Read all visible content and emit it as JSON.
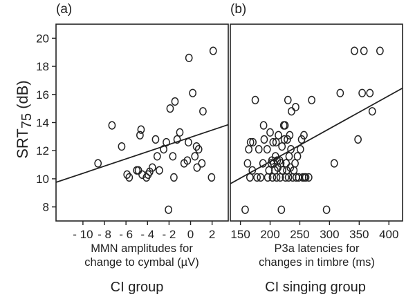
{
  "chart_data": [
    {
      "type": "scatter",
      "panel_label": "(a)",
      "group_label": "CI group",
      "xlabel_lines": [
        "MMN amplitudes for",
        "change to cymbal (µV)"
      ],
      "ylabel": {
        "main": "SRT",
        "sub": "75",
        "unit": " (dB)"
      },
      "xlim": [
        -12.5,
        3.5
      ],
      "ylim": [
        7,
        21
      ],
      "xticks": [
        -10,
        -8,
        -6,
        -4,
        -2,
        0,
        2
      ],
      "xtick_labels": [
        "- 10",
        "- 8",
        "- 6",
        "- 4",
        "- 2",
        "0",
        "2"
      ],
      "yticks": [
        8,
        10,
        12,
        14,
        16,
        18,
        20
      ],
      "points": [
        [
          -8.6,
          11.1
        ],
        [
          -7.3,
          13.8
        ],
        [
          -6.4,
          12.3
        ],
        [
          -5.9,
          10.3
        ],
        [
          -5.7,
          10.1
        ],
        [
          -5.0,
          10.6
        ],
        [
          -4.85,
          10.6
        ],
        [
          -4.7,
          13.1
        ],
        [
          -4.6,
          13.5
        ],
        [
          -4.5,
          10.3
        ],
        [
          -4.1,
          10.1
        ],
        [
          -3.95,
          10.3
        ],
        [
          -3.8,
          10.5
        ],
        [
          -3.55,
          10.8
        ],
        [
          -3.25,
          12.8
        ],
        [
          -3.1,
          11.6
        ],
        [
          -2.9,
          10.6
        ],
        [
          -2.5,
          12.1
        ],
        [
          -2.25,
          12.6
        ],
        [
          -2.05,
          7.8
        ],
        [
          -1.9,
          15.0
        ],
        [
          -1.65,
          11.6
        ],
        [
          -1.55,
          10.1
        ],
        [
          -1.45,
          15.5
        ],
        [
          -1.25,
          12.8
        ],
        [
          -1.0,
          13.3
        ],
        [
          -0.6,
          11.1
        ],
        [
          -0.3,
          11.3
        ],
        [
          -0.15,
          18.6
        ],
        [
          -0.2,
          12.6
        ],
        [
          0.2,
          16.1
        ],
        [
          0.4,
          11.6
        ],
        [
          0.55,
          12.3
        ],
        [
          0.6,
          10.8
        ],
        [
          0.75,
          12.1
        ],
        [
          1.05,
          11.1
        ],
        [
          1.15,
          14.8
        ],
        [
          1.95,
          10.1
        ],
        [
          2.1,
          19.1
        ]
      ],
      "fit_line": {
        "x": [
          -12.5,
          3.5
        ],
        "y": [
          9.75,
          13.85
        ]
      }
    },
    {
      "type": "scatter",
      "panel_label": "(b)",
      "group_label": "CI singing group",
      "xlabel_lines": [
        "P3a latencies for",
        "changes in timbre (ms)"
      ],
      "xlim": [
        133,
        423
      ],
      "ylim": [
        7,
        21
      ],
      "xticks": [
        150,
        200,
        250,
        300,
        350,
        400
      ],
      "xtick_labels": [
        "150",
        "200",
        "250",
        "300",
        "350",
        "400"
      ],
      "points": [
        [
          158,
          7.8
        ],
        [
          162,
          11.1
        ],
        [
          164,
          12.1
        ],
        [
          166,
          10.1
        ],
        [
          167,
          12.6
        ],
        [
          170,
          10.6
        ],
        [
          171,
          12.6
        ],
        [
          175,
          15.6
        ],
        [
          178,
          10.1
        ],
        [
          181,
          12.1
        ],
        [
          184,
          10.1
        ],
        [
          188,
          11.1
        ],
        [
          189,
          13.8
        ],
        [
          190,
          12.8
        ],
        [
          195,
          12.1
        ],
        [
          196,
          10.1
        ],
        [
          198,
          10.6
        ],
        [
          200,
          13.3
        ],
        [
          202,
          11.1
        ],
        [
          203,
          11.3
        ],
        [
          204,
          10.1
        ],
        [
          205,
          12.6
        ],
        [
          206,
          11.1
        ],
        [
          208,
          10.6
        ],
        [
          209,
          11.6
        ],
        [
          210,
          12.6
        ],
        [
          211,
          10.1
        ],
        [
          212,
          11.3
        ],
        [
          213,
          10.8
        ],
        [
          214,
          13.1
        ],
        [
          216,
          11.3
        ],
        [
          217,
          10.1
        ],
        [
          218,
          11.1
        ],
        [
          219,
          7.8
        ],
        [
          220,
          12.3
        ],
        [
          221,
          10.6
        ],
        [
          223,
          13.8
        ],
        [
          224,
          12.8
        ],
        [
          225,
          13.8
        ],
        [
          226,
          10.1
        ],
        [
          227,
          11.1
        ],
        [
          228,
          10.6
        ],
        [
          229,
          12.8
        ],
        [
          230,
          15.6
        ],
        [
          231,
          10.1
        ],
        [
          232,
          11.6
        ],
        [
          233,
          13.1
        ],
        [
          234,
          10.8
        ],
        [
          235,
          12.1
        ],
        [
          236,
          14.8
        ],
        [
          238,
          10.1
        ],
        [
          240,
          10.6
        ],
        [
          242,
          11.1
        ],
        [
          243,
          15.1
        ],
        [
          244,
          10.1
        ],
        [
          246,
          11.6
        ],
        [
          248,
          10.1
        ],
        [
          251,
          12.1
        ],
        [
          253,
          12.8
        ],
        [
          255,
          10.1
        ],
        [
          257,
          13.1
        ],
        [
          258,
          10.1
        ],
        [
          260,
          10.1
        ],
        [
          265,
          10.1
        ],
        [
          270,
          15.6
        ],
        [
          295,
          7.8
        ],
        [
          308,
          11.1
        ],
        [
          318,
          16.1
        ],
        [
          342,
          19.1
        ],
        [
          348,
          12.8
        ],
        [
          355,
          16.1
        ],
        [
          358,
          19.1
        ],
        [
          368,
          16.1
        ],
        [
          372,
          14.8
        ],
        [
          385,
          19.1
        ]
      ],
      "fit_line": {
        "x": [
          133,
          423
        ],
        "y": [
          9.65,
          16.45
        ]
      }
    }
  ]
}
